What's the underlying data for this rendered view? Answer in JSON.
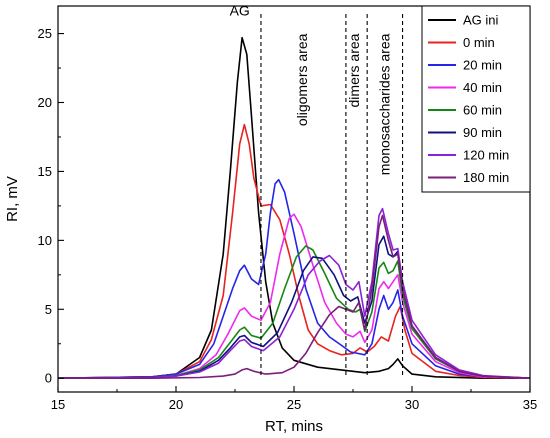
{
  "chart_data": {
    "type": "line",
    "title": "",
    "xlabel": "RT, mins",
    "ylabel": "RI, mV",
    "xlim": [
      15,
      35
    ],
    "ylim": [
      -1,
      27
    ],
    "xticks": [
      15,
      20,
      25,
      30,
      35
    ],
    "yticks": [
      0,
      5,
      10,
      15,
      20,
      25
    ],
    "grid": false,
    "legend_position": "top-right",
    "region_lines_x": [
      23.6,
      27.2,
      28.1,
      29.6
    ],
    "region_labels": [
      {
        "text": "AG",
        "x": 22.7,
        "y": 26.3,
        "rotate": false
      },
      {
        "text": "oligomers area",
        "x": 25.4,
        "y": 25.0,
        "rotate": true
      },
      {
        "text": "dimers area",
        "x": 27.6,
        "y": 25.0,
        "rotate": true
      },
      {
        "text": "monosaccharides area",
        "x": 28.9,
        "y": 25.0,
        "rotate": true
      }
    ],
    "series": [
      {
        "name": "AG ini",
        "color": "#000000",
        "points": [
          [
            15,
            0.0
          ],
          [
            19,
            0.1
          ],
          [
            20,
            0.3
          ],
          [
            21,
            1.5
          ],
          [
            21.5,
            3.5
          ],
          [
            22,
            9
          ],
          [
            22.3,
            15
          ],
          [
            22.6,
            21.5
          ],
          [
            22.8,
            24.7
          ],
          [
            23.0,
            23.5
          ],
          [
            23.2,
            19
          ],
          [
            23.5,
            12
          ],
          [
            23.8,
            7
          ],
          [
            24.1,
            4
          ],
          [
            24.5,
            2.2
          ],
          [
            25,
            1.3
          ],
          [
            26,
            0.8
          ],
          [
            27,
            0.6
          ],
          [
            28,
            0.4
          ],
          [
            28.6,
            0.5
          ],
          [
            29,
            0.7
          ],
          [
            29.2,
            1
          ],
          [
            29.4,
            1.4
          ],
          [
            29.6,
            0.9
          ],
          [
            30,
            0.3
          ],
          [
            31,
            0.1
          ],
          [
            33,
            0.0
          ],
          [
            35,
            0.0
          ]
        ]
      },
      {
        "name": "0 min",
        "color": "#e8231f",
        "points": [
          [
            15,
            0.0
          ],
          [
            19,
            0.1
          ],
          [
            20,
            0.3
          ],
          [
            21,
            1.2
          ],
          [
            21.5,
            2.8
          ],
          [
            22,
            6
          ],
          [
            22.4,
            12
          ],
          [
            22.7,
            17
          ],
          [
            22.9,
            18.4
          ],
          [
            23.1,
            17
          ],
          [
            23.3,
            14.5
          ],
          [
            23.6,
            12.5
          ],
          [
            24.0,
            12.6
          ],
          [
            24.4,
            11.5
          ],
          [
            24.8,
            9
          ],
          [
            25.2,
            6
          ],
          [
            25.6,
            3.5
          ],
          [
            26,
            2.5
          ],
          [
            26.5,
            2
          ],
          [
            27,
            1.7
          ],
          [
            27.5,
            1.8
          ],
          [
            27.8,
            2.2
          ],
          [
            28.1,
            1.9
          ],
          [
            28.4,
            2.3
          ],
          [
            28.7,
            3.0
          ],
          [
            29.0,
            2.7
          ],
          [
            29.3,
            4.5
          ],
          [
            29.5,
            5.2
          ],
          [
            29.7,
            3.5
          ],
          [
            30,
            1.8
          ],
          [
            31,
            0.5
          ],
          [
            32,
            0.2
          ],
          [
            33,
            0.05
          ],
          [
            35,
            0.0
          ]
        ]
      },
      {
        "name": "20 min",
        "color": "#2525e8",
        "points": [
          [
            15,
            0.0
          ],
          [
            19,
            0.1
          ],
          [
            20,
            0.3
          ],
          [
            21,
            1
          ],
          [
            21.6,
            2.5
          ],
          [
            22,
            4.5
          ],
          [
            22.4,
            6.5
          ],
          [
            22.7,
            7.8
          ],
          [
            22.9,
            8.2
          ],
          [
            23.2,
            7.2
          ],
          [
            23.5,
            6.8
          ],
          [
            23.8,
            9
          ],
          [
            24.0,
            12
          ],
          [
            24.2,
            14.1
          ],
          [
            24.35,
            14.4
          ],
          [
            24.6,
            13.5
          ],
          [
            25,
            10.5
          ],
          [
            25.5,
            6.5
          ],
          [
            26,
            4
          ],
          [
            26.5,
            3
          ],
          [
            27,
            2.4
          ],
          [
            27.4,
            1.9
          ],
          [
            27.7,
            1.8
          ],
          [
            28.0,
            1.7
          ],
          [
            28.3,
            2.5
          ],
          [
            28.6,
            5
          ],
          [
            28.8,
            6
          ],
          [
            29.0,
            5
          ],
          [
            29.2,
            5.5
          ],
          [
            29.4,
            6.4
          ],
          [
            29.6,
            4.5
          ],
          [
            30,
            2.5
          ],
          [
            31,
            0.9
          ],
          [
            32,
            0.3
          ],
          [
            33,
            0.1
          ],
          [
            35,
            0.0
          ]
        ]
      },
      {
        "name": "40 min",
        "color": "#ee2aee",
        "points": [
          [
            15,
            0.0
          ],
          [
            19,
            0.05
          ],
          [
            20,
            0.2
          ],
          [
            21,
            0.7
          ],
          [
            21.7,
            1.7
          ],
          [
            22.2,
            3.2
          ],
          [
            22.7,
            4.9
          ],
          [
            22.9,
            5.1
          ],
          [
            23.2,
            4.5
          ],
          [
            23.6,
            4.2
          ],
          [
            24,
            5.5
          ],
          [
            24.4,
            9
          ],
          [
            24.8,
            11.6
          ],
          [
            25.0,
            11.9
          ],
          [
            25.3,
            11
          ],
          [
            25.8,
            8.2
          ],
          [
            26.3,
            5.5
          ],
          [
            26.8,
            4
          ],
          [
            27.2,
            3.2
          ],
          [
            27.5,
            3
          ],
          [
            27.8,
            3.4
          ],
          [
            28.0,
            2.6
          ],
          [
            28.3,
            3.5
          ],
          [
            28.6,
            6.5
          ],
          [
            28.8,
            7.0
          ],
          [
            29.0,
            6.5
          ],
          [
            29.2,
            7.0
          ],
          [
            29.4,
            7.5
          ],
          [
            29.6,
            5.5
          ],
          [
            30,
            3.2
          ],
          [
            31,
            1.2
          ],
          [
            32,
            0.4
          ],
          [
            33,
            0.1
          ],
          [
            35,
            0.0
          ]
        ]
      },
      {
        "name": "60 min",
        "color": "#158715",
        "points": [
          [
            15,
            0.0
          ],
          [
            19,
            0.05
          ],
          [
            20,
            0.2
          ],
          [
            21,
            0.6
          ],
          [
            21.8,
            1.5
          ],
          [
            22.3,
            2.6
          ],
          [
            22.7,
            3.5
          ],
          [
            22.9,
            3.7
          ],
          [
            23.2,
            3.1
          ],
          [
            23.6,
            2.9
          ],
          [
            24.1,
            4
          ],
          [
            24.6,
            6.5
          ],
          [
            25.1,
            8.8
          ],
          [
            25.5,
            9.6
          ],
          [
            25.8,
            9.3
          ],
          [
            26.3,
            7.6
          ],
          [
            26.8,
            5.8
          ],
          [
            27.3,
            5
          ],
          [
            27.6,
            4.8
          ],
          [
            27.8,
            5.0
          ],
          [
            28.0,
            3.4
          ],
          [
            28.3,
            4.8
          ],
          [
            28.6,
            8.0
          ],
          [
            28.8,
            8.4
          ],
          [
            29.0,
            7.6
          ],
          [
            29.2,
            7.8
          ],
          [
            29.4,
            8.5
          ],
          [
            29.6,
            6.0
          ],
          [
            30,
            3.6
          ],
          [
            31,
            1.4
          ],
          [
            32,
            0.5
          ],
          [
            33,
            0.15
          ],
          [
            35,
            0.0
          ]
        ]
      },
      {
        "name": "90 min",
        "color": "#101080",
        "points": [
          [
            15,
            0.0
          ],
          [
            19,
            0.05
          ],
          [
            20,
            0.15
          ],
          [
            21,
            0.5
          ],
          [
            21.8,
            1.3
          ],
          [
            22.3,
            2.2
          ],
          [
            22.7,
            3.0
          ],
          [
            22.9,
            3.1
          ],
          [
            23.2,
            2.6
          ],
          [
            23.7,
            2.3
          ],
          [
            24.3,
            3.3
          ],
          [
            24.9,
            5.5
          ],
          [
            25.4,
            7.8
          ],
          [
            25.8,
            8.8
          ],
          [
            26.2,
            8.7
          ],
          [
            26.7,
            7.5
          ],
          [
            27.1,
            6
          ],
          [
            27.4,
            5.6
          ],
          [
            27.7,
            5.9
          ],
          [
            28.0,
            4.0
          ],
          [
            28.3,
            5.6
          ],
          [
            28.6,
            9.7
          ],
          [
            28.8,
            10.3
          ],
          [
            29.0,
            9.0
          ],
          [
            29.2,
            8.8
          ],
          [
            29.4,
            9.2
          ],
          [
            29.6,
            6.5
          ],
          [
            30,
            3.8
          ],
          [
            31,
            1.5
          ],
          [
            32,
            0.5
          ],
          [
            33,
            0.15
          ],
          [
            35,
            0.0
          ]
        ]
      },
      {
        "name": "120 min",
        "color": "#8a22d6",
        "points": [
          [
            15,
            0.0
          ],
          [
            19,
            0.05
          ],
          [
            20,
            0.15
          ],
          [
            21,
            0.45
          ],
          [
            21.8,
            1.1
          ],
          [
            22.3,
            2.0
          ],
          [
            22.7,
            2.7
          ],
          [
            22.9,
            2.8
          ],
          [
            23.2,
            2.3
          ],
          [
            23.7,
            2.0
          ],
          [
            24.4,
            3.0
          ],
          [
            25,
            5
          ],
          [
            25.6,
            7.5
          ],
          [
            26.1,
            8.5
          ],
          [
            26.5,
            8.9
          ],
          [
            26.9,
            8.2
          ],
          [
            27.2,
            6.8
          ],
          [
            27.5,
            6.4
          ],
          [
            27.75,
            7.0
          ],
          [
            28.0,
            4.5
          ],
          [
            28.3,
            7
          ],
          [
            28.6,
            11.8
          ],
          [
            28.75,
            12.3
          ],
          [
            29.0,
            10.5
          ],
          [
            29.2,
            9.3
          ],
          [
            29.4,
            9.4
          ],
          [
            29.6,
            7.0
          ],
          [
            30,
            4.2
          ],
          [
            31,
            1.7
          ],
          [
            32,
            0.6
          ],
          [
            33,
            0.2
          ],
          [
            35,
            0.0
          ]
        ]
      },
      {
        "name": "180 min",
        "color": "#7a1e7a",
        "points": [
          [
            15,
            0.0
          ],
          [
            19,
            0.0
          ],
          [
            21,
            0.05
          ],
          [
            22,
            0.15
          ],
          [
            22.5,
            0.3
          ],
          [
            22.8,
            0.6
          ],
          [
            23.0,
            0.7
          ],
          [
            23.3,
            0.5
          ],
          [
            23.8,
            0.3
          ],
          [
            24.5,
            0.4
          ],
          [
            25,
            0.8
          ],
          [
            25.5,
            1.8
          ],
          [
            26,
            3.3
          ],
          [
            26.5,
            4.6
          ],
          [
            26.9,
            5.2
          ],
          [
            27.2,
            5.0
          ],
          [
            27.5,
            4.8
          ],
          [
            27.75,
            5.5
          ],
          [
            28.0,
            3.5
          ],
          [
            28.3,
            6.5
          ],
          [
            28.6,
            11.0
          ],
          [
            28.75,
            11.8
          ],
          [
            29.0,
            10
          ],
          [
            29.2,
            8.8
          ],
          [
            29.4,
            9.0
          ],
          [
            29.6,
            6.5
          ],
          [
            30,
            3.8
          ],
          [
            31,
            1.5
          ],
          [
            32,
            0.5
          ],
          [
            33,
            0.15
          ],
          [
            35,
            0.0
          ]
        ]
      }
    ]
  }
}
